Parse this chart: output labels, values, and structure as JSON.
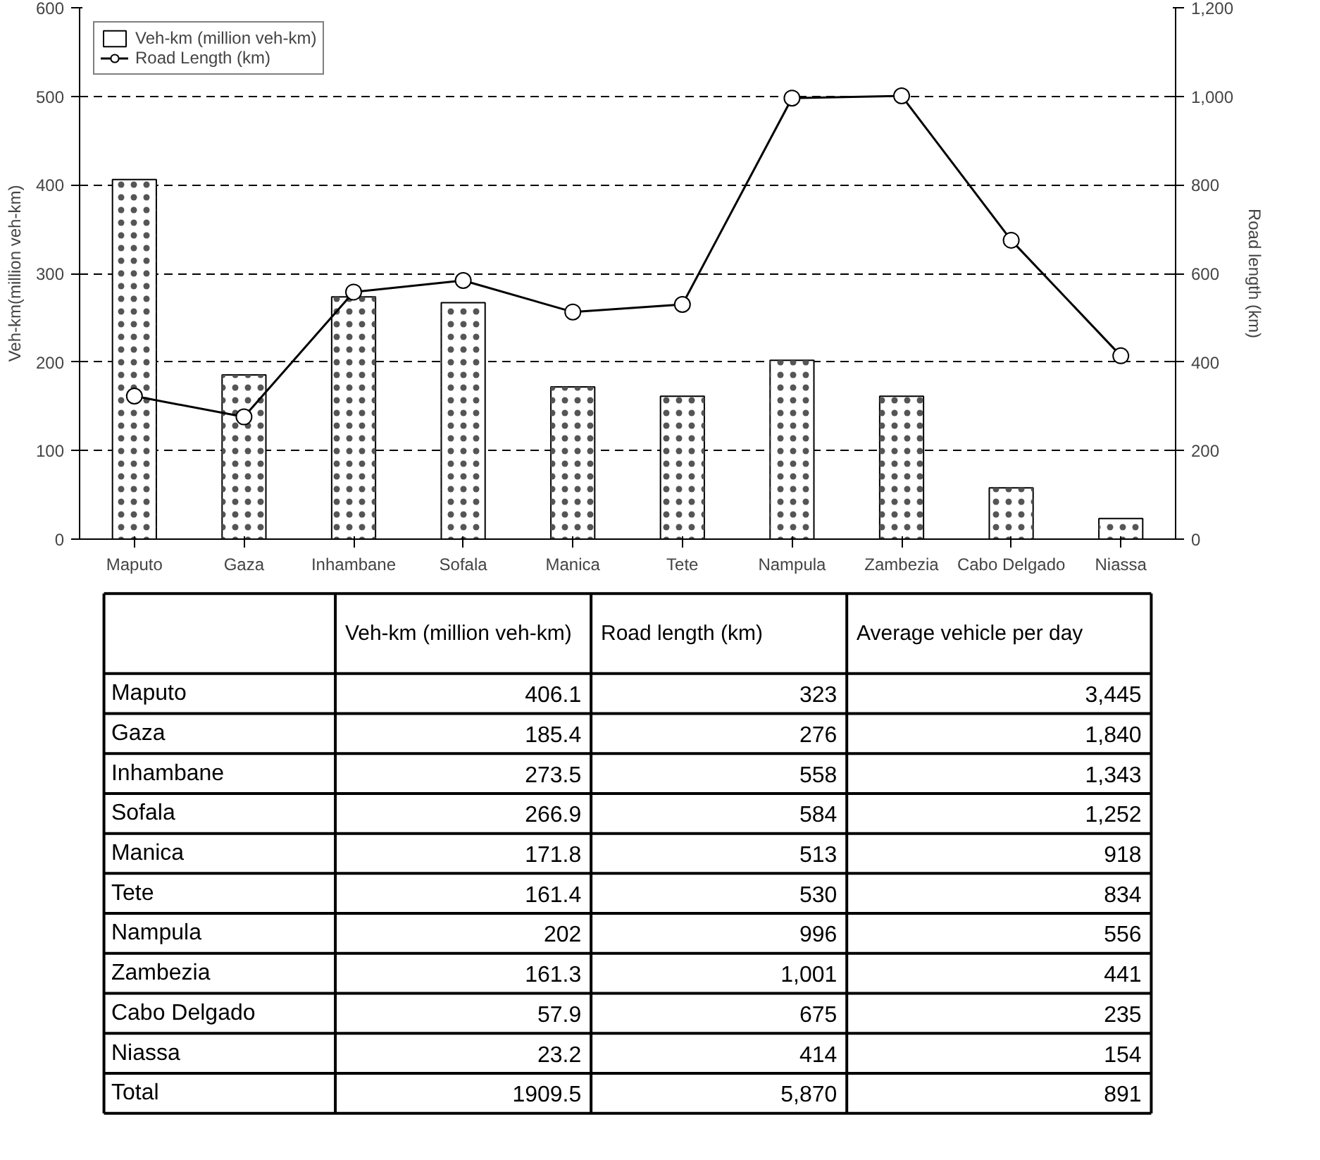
{
  "chart_data": [
    {
      "type": "bar",
      "ylabel": "Veh-km(million veh-km)",
      "y2label": "Road length (km)",
      "categories": [
        "Maputo",
        "Gaza",
        "Inhambane",
        "Sofala",
        "Manica",
        "Tete",
        "Nampula",
        "Zambezia",
        "Cabo Delgado",
        "Niassa"
      ],
      "series": [
        {
          "name": "Veh-km (million veh-km)",
          "color": "#ffffff",
          "values": [
            406.1,
            185.4,
            273.5,
            266.9,
            171.8,
            161.4,
            202,
            161.3,
            57.9,
            23.2
          ]
        },
        {
          "name": "Road Length (km)",
          "type": "line",
          "axis": "y2",
          "color": "#000000",
          "values": [
            323,
            276,
            558,
            584,
            513,
            530,
            996,
            1001,
            675,
            414
          ]
        }
      ],
      "ylim": [
        0,
        600
      ],
      "yticks": [
        0,
        100,
        200,
        300,
        400,
        500,
        600
      ],
      "y2lim": [
        0,
        1200
      ],
      "y2ticks": [
        {
          "value": 0,
          "label": "0"
        },
        {
          "value": 200,
          "label": "200"
        },
        {
          "value": 400,
          "label": "400"
        },
        {
          "value": 600,
          "label": "600"
        },
        {
          "value": 800,
          "label": "800"
        },
        {
          "value": 1000,
          "label": "1,000"
        },
        {
          "value": 1200,
          "label": "1,200"
        }
      ],
      "grid": "y",
      "legend": "top left",
      "marker": "circle",
      "line_style": "solid"
    },
    {
      "type": "other",
      "annotations": [
        "Veh-km (million veh-km)",
        "Road length (km)",
        "Average vehicle per day",
        "Maputo",
        "406.1",
        "323",
        "3,445",
        "Gaza",
        "185.4",
        "276",
        "1,840",
        "Inhambane",
        "273.5",
        "558",
        "1,343",
        "Sofala",
        "266.9",
        "584",
        "1,252",
        "Manica",
        "171.8",
        "513",
        "918",
        "Tete",
        "161.4",
        "530",
        "834",
        "Nampula",
        "202",
        "996",
        "556",
        "Zambezia",
        "161.3",
        "1,001",
        "441",
        "Cabo Delgado",
        "57.9",
        "675",
        "235",
        "Niassa",
        "23.2",
        "414",
        "154",
        "Total",
        "1909.5",
        "5,870",
        "891"
      ]
    }
  ]
}
